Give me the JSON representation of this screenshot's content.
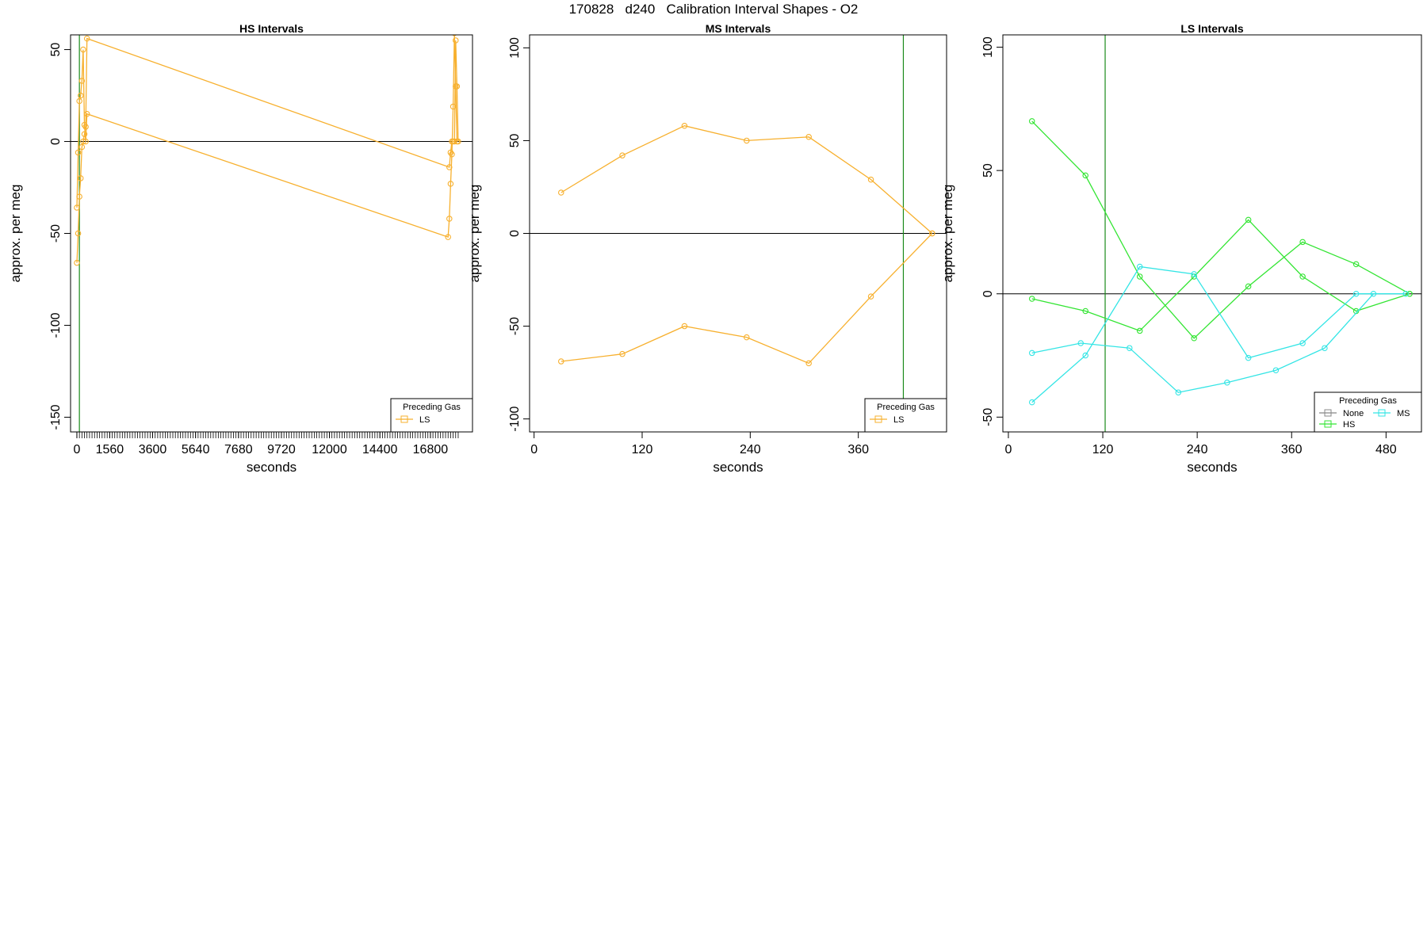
{
  "title": "170828   d240   Calibration Interval Shapes - O2",
  "colors": {
    "HS": "#33e533",
    "MS": "#33e5e5",
    "LS": "#f7b02e",
    "None": "#888888",
    "vline": "#1a8a1a",
    "axis": "#000000"
  },
  "chart_data": [
    {
      "type": "line",
      "title": "HS Intervals",
      "xlabel": "seconds",
      "ylabel": "approx. per meg",
      "xlim": [
        -300,
        18800
      ],
      "ylim": [
        -158,
        58
      ],
      "xticks": [
        0,
        1560,
        3600,
        5640,
        7680,
        9720,
        12000,
        14400,
        16800
      ],
      "yticks": [
        50,
        0,
        -50,
        -100,
        -150
      ],
      "vline_x": 120,
      "legend": {
        "title": "Preceding Gas",
        "entries": [
          "LS"
        ],
        "position": "bottom-right"
      },
      "series": [
        {
          "gas": "LS",
          "x": [
            0,
            60,
            120,
            180,
            240,
            300,
            360,
            420,
            480,
            17700,
            17760,
            17820,
            17880,
            17940,
            18000,
            18060,
            18120
          ],
          "y": [
            -66,
            -50,
            -30,
            -20,
            -3,
            0,
            4,
            8,
            56,
            -14,
            -6,
            0,
            0,
            0,
            55,
            30,
            0
          ]
        },
        {
          "gas": "LS",
          "x": [
            0,
            60,
            120,
            180,
            240,
            300,
            360,
            420,
            480,
            17640,
            17700,
            17760,
            17820,
            17880,
            17940,
            18000,
            18060
          ],
          "y": [
            -36,
            -6,
            22,
            25,
            33,
            50,
            9,
            0,
            15,
            -52,
            -42,
            -23,
            -7,
            19,
            59,
            30,
            0
          ]
        }
      ]
    },
    {
      "type": "line",
      "title": "MS Intervals",
      "xlabel": "seconds",
      "ylabel": "approx. per meg",
      "xlim": [
        -5,
        458
      ],
      "ylim": [
        -107,
        107
      ],
      "xticks": [
        0,
        120,
        240,
        360
      ],
      "yticks": [
        100,
        50,
        0,
        -50,
        -100
      ],
      "vline_x": 410,
      "legend": {
        "title": "Preceding Gas",
        "entries": [
          "LS"
        ],
        "position": "bottom-right"
      },
      "series": [
        {
          "gas": "LS",
          "x": [
            30,
            98,
            167,
            236,
            305,
            374,
            442
          ],
          "y": [
            22,
            42,
            58,
            50,
            52,
            29,
            0
          ]
        },
        {
          "gas": "LS",
          "x": [
            30,
            98,
            167,
            236,
            305,
            374,
            442
          ],
          "y": [
            -69,
            -65,
            -50,
            -56,
            -70,
            -34,
            0
          ]
        }
      ]
    },
    {
      "type": "line",
      "title": "LS Intervals",
      "xlabel": "seconds",
      "ylabel": "approx. per meg",
      "xlim": [
        -7,
        525
      ],
      "ylim": [
        -56,
        105
      ],
      "xticks": [
        0,
        120,
        240,
        360,
        480
      ],
      "yticks": [
        100,
        50,
        0,
        -50
      ],
      "vline_x": 123,
      "legend": {
        "title": "Preceding Gas",
        "entries": [
          "None",
          "MS",
          "HS"
        ],
        "position": "bottom-right"
      },
      "series": [
        {
          "gas": "HS",
          "x": [
            30,
            98,
            167,
            236,
            305,
            374,
            442,
            510
          ],
          "y": [
            70,
            48,
            7,
            -18,
            3,
            21,
            12,
            0
          ]
        },
        {
          "gas": "HS",
          "x": [
            30,
            98,
            167,
            236,
            305,
            374,
            442,
            510
          ],
          "y": [
            -2,
            -7,
            -15,
            7,
            30,
            7,
            -7,
            0
          ]
        },
        {
          "gas": "MS",
          "x": [
            30,
            92,
            154,
            216,
            278,
            340,
            402,
            464
          ],
          "y": [
            -24,
            -20,
            -22,
            -40,
            -36,
            -31,
            -22,
            0
          ]
        },
        {
          "gas": "MS",
          "x": [
            30,
            98,
            167,
            236,
            305,
            374,
            442,
            505
          ],
          "y": [
            -44,
            -25,
            11,
            8,
            -26,
            -20,
            0,
            0
          ]
        }
      ]
    }
  ]
}
